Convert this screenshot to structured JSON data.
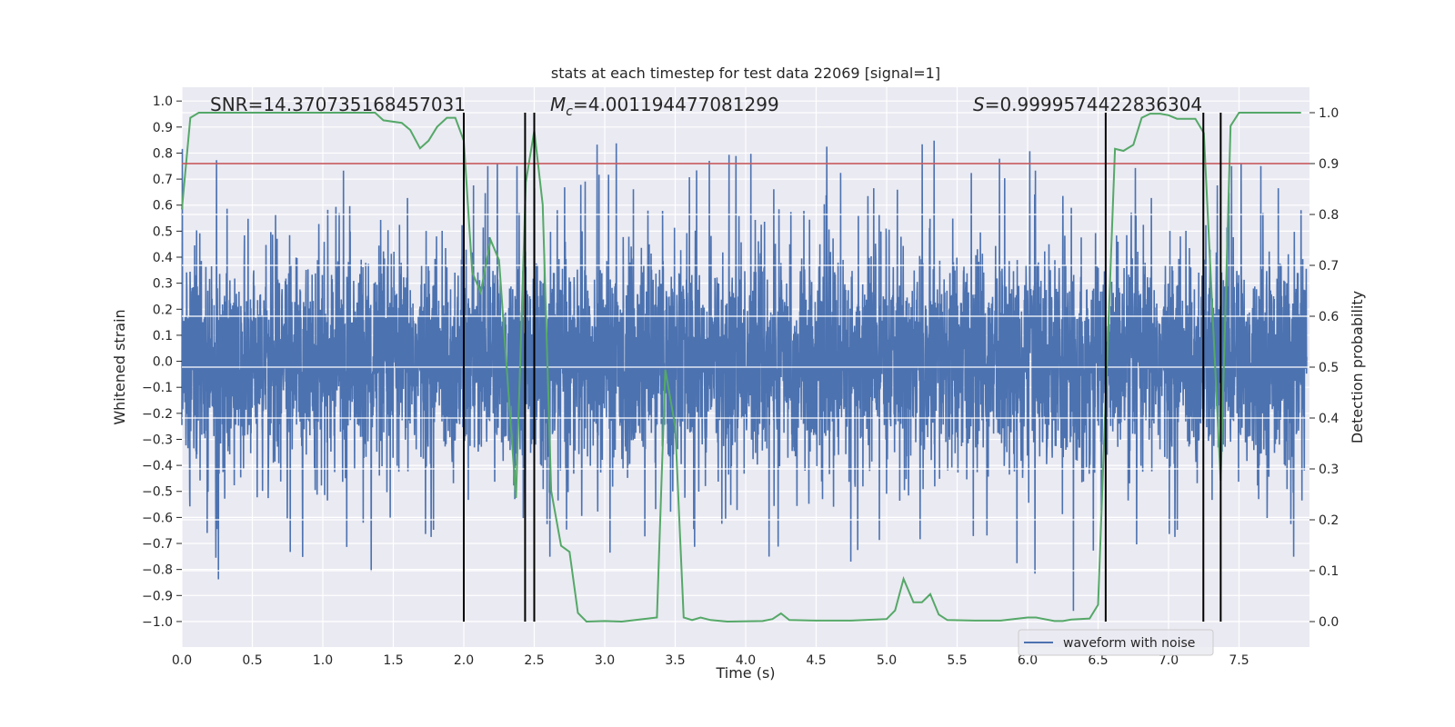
{
  "chart_data": {
    "type": "line",
    "title": "stats at each timestep for test data 22069 [signal=1]",
    "xlabel": "Time (s)",
    "ylabel": "Whitened strain",
    "ylabel_right": "Detection probability",
    "xlim": [
      0,
      8.0
    ],
    "ylim": [
      -1.098,
      1.053
    ],
    "ylim_right": [
      -0.05,
      1.05
    ],
    "grid": true,
    "background": "#eaeaf2",
    "x_ticks": [
      "0.0",
      "0.5",
      "1.0",
      "1.5",
      "2.0",
      "2.5",
      "3.0",
      "3.5",
      "4.0",
      "4.5",
      "5.0",
      "5.5",
      "6.0",
      "6.5",
      "7.0",
      "7.5"
    ],
    "y_ticks": [
      "1.0",
      "0.9",
      "0.8",
      "0.7",
      "0.6",
      "0.5",
      "0.4",
      "0.3",
      "0.2",
      "0.1",
      "0.0",
      "−0.1",
      "−0.2",
      "−0.3",
      "−0.4",
      "−0.5",
      "−0.6",
      "−0.7",
      "−0.8",
      "−0.9",
      "−1.0"
    ],
    "y_ticks_right": [
      "1.0",
      "0.9",
      "0.8",
      "0.7",
      "0.6",
      "0.5",
      "0.4",
      "0.3",
      "0.2",
      "0.1",
      "0.0"
    ],
    "legend": {
      "position": "lower-right",
      "entries": [
        "waveform with noise"
      ]
    },
    "series": [
      {
        "name": "waveform with noise",
        "axis": "left",
        "color": "#4c72b0",
        "kind": "dense noisy waveform",
        "approx_range": [
          -1.0,
          0.95
        ]
      },
      {
        "axis": "right",
        "color": "#55a868",
        "points": [
          [
            0,
            0.81
          ],
          [
            0.06,
            0.99
          ],
          [
            0.12,
            1.0
          ],
          [
            1.37,
            1.0
          ],
          [
            1.43,
            0.985
          ],
          [
            1.56,
            0.98
          ],
          [
            1.62,
            0.966
          ],
          [
            1.69,
            0.93
          ],
          [
            1.75,
            0.945
          ],
          [
            1.81,
            0.972
          ],
          [
            1.88,
            0.99
          ],
          [
            1.94,
            0.99
          ],
          [
            2.0,
            0.945
          ],
          [
            2.06,
            0.686
          ],
          [
            2.12,
            0.647
          ],
          [
            2.19,
            0.75
          ],
          [
            2.25,
            0.71
          ],
          [
            2.37,
            0.243
          ],
          [
            2.44,
            0.863
          ],
          [
            2.5,
            0.965
          ],
          [
            2.56,
            0.819
          ],
          [
            2.62,
            0.257
          ],
          [
            2.69,
            0.149
          ],
          [
            2.75,
            0.137
          ],
          [
            2.81,
            0.017
          ],
          [
            2.87,
            0.0
          ],
          [
            3.0,
            0.001
          ],
          [
            3.12,
            0.0
          ],
          [
            3.37,
            0.008
          ],
          [
            3.43,
            0.495
          ],
          [
            3.5,
            0.383
          ],
          [
            3.56,
            0.008
          ],
          [
            3.62,
            0.003
          ],
          [
            3.68,
            0.008
          ],
          [
            3.75,
            0.003
          ],
          [
            3.87,
            0.0
          ],
          [
            4.12,
            0.001
          ],
          [
            4.19,
            0.005
          ],
          [
            4.25,
            0.016
          ],
          [
            4.31,
            0.003
          ],
          [
            4.5,
            0.002
          ],
          [
            4.75,
            0.002
          ],
          [
            5.0,
            0.005
          ],
          [
            5.06,
            0.022
          ],
          [
            5.12,
            0.084
          ],
          [
            5.19,
            0.038
          ],
          [
            5.25,
            0.038
          ],
          [
            5.31,
            0.054
          ],
          [
            5.37,
            0.014
          ],
          [
            5.43,
            0.003
          ],
          [
            5.62,
            0.002
          ],
          [
            5.81,
            0.002
          ],
          [
            6.0,
            0.008
          ],
          [
            6.06,
            0.008
          ],
          [
            6.19,
            0.001
          ],
          [
            6.25,
            0.001
          ],
          [
            6.31,
            0.004
          ],
          [
            6.44,
            0.006
          ],
          [
            6.5,
            0.033
          ],
          [
            6.62,
            0.929
          ],
          [
            6.68,
            0.925
          ],
          [
            6.75,
            0.937
          ],
          [
            6.81,
            0.99
          ],
          [
            6.87,
            0.998
          ],
          [
            6.94,
            0.998
          ],
          [
            7.0,
            0.995
          ],
          [
            7.06,
            0.988
          ],
          [
            7.19,
            0.988
          ],
          [
            7.25,
            0.96
          ],
          [
            7.37,
            0.277
          ],
          [
            7.44,
            0.974
          ],
          [
            7.5,
            1.0
          ],
          [
            7.94,
            1.0
          ]
        ]
      }
    ],
    "threshold": {
      "axis": "right",
      "value": 0.9,
      "color": "#c44e52"
    },
    "vlines": {
      "x": [
        2.0,
        2.435,
        2.5,
        6.554,
        7.247,
        7.37
      ],
      "range_right": [
        0,
        1
      ],
      "color": "#000000"
    },
    "annotations": [
      {
        "label": "SNR",
        "sub": "",
        "italic": false,
        "value": "=14.370735168457031"
      },
      {
        "label": "M",
        "sub": "c",
        "italic": true,
        "value": "=4.001194477081299"
      },
      {
        "label": "S",
        "sub": "",
        "italic": true,
        "value": "=0.9999574422836304"
      }
    ]
  }
}
